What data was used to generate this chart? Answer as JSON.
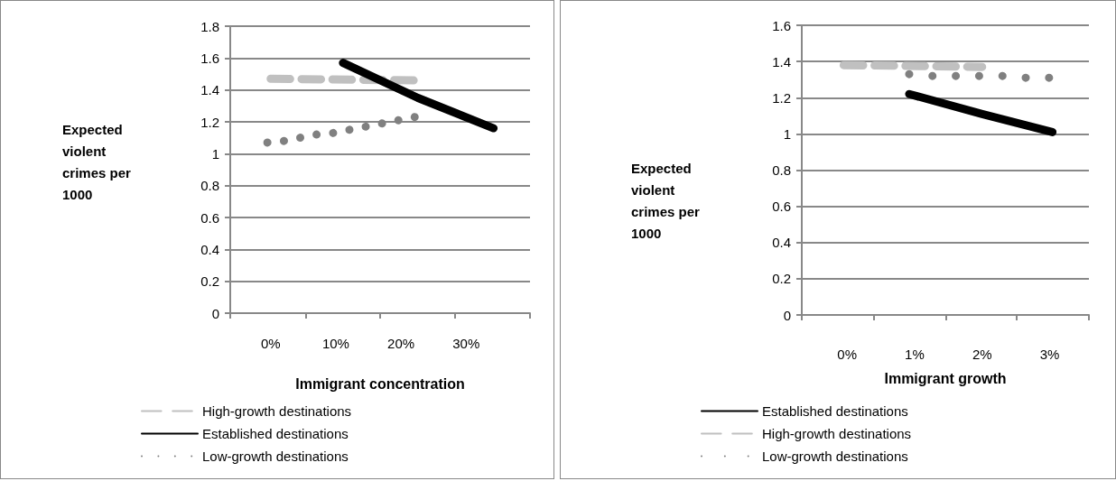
{
  "chart_data": [
    {
      "type": "line",
      "xlabel": "Immigrant concentration",
      "ylabel": "Expected violent crimes per 1000",
      "xlim": [
        -6.2,
        39.8
      ],
      "xticks": [
        {
          "value": -6.2,
          "label": null
        },
        {
          "value": 0,
          "label": "0%"
        },
        {
          "value": 5.4,
          "label": null
        },
        {
          "value": 10,
          "label": "10%"
        },
        {
          "value": 16.8,
          "label": null
        },
        {
          "value": 20,
          "label": "20%"
        },
        {
          "value": 28.3,
          "label": null
        },
        {
          "value": 30,
          "label": "30%"
        },
        {
          "value": 39.8,
          "label": null
        }
      ],
      "ylim": [
        0,
        1.8
      ],
      "yticks": [
        0,
        0.2,
        0.4,
        0.6,
        0.8,
        1,
        1.2,
        1.4,
        1.6,
        1.8
      ],
      "grid": "y",
      "legend": "bottom",
      "marker": "none",
      "series": [
        {
          "name": "High-growth destinations",
          "color": "#c0c0c0",
          "line_style": "dashed",
          "x": [
            0,
            22.5
          ],
          "values": [
            1.47,
            1.46
          ]
        },
        {
          "name": "Established destinations",
          "color": "#000000",
          "line_style": "solid",
          "x": [
            11.1,
            22.6,
            34.2
          ],
          "values": [
            1.57,
            1.35,
            1.16
          ]
        },
        {
          "name": "Low-growth destinations",
          "color": "#808080",
          "line_style": "dotted",
          "x": [
            -0.5,
            2.1,
            4.5,
            7.0,
            9.6,
            12.1,
            14.6,
            17.1,
            19.6,
            22.1
          ],
          "values": [
            1.07,
            1.08,
            1.1,
            1.12,
            1.13,
            1.15,
            1.17,
            1.19,
            1.21,
            1.23
          ]
        }
      ]
    },
    {
      "type": "line",
      "xlabel": "Immigrant growth",
      "ylabel": "Expected violent crimes per 1000",
      "xlim": [
        -0.67,
        3.58
      ],
      "xticks": [
        {
          "value": -0.67,
          "label": null
        },
        {
          "value": 0,
          "label": "0%"
        },
        {
          "value": 0.4,
          "label": null
        },
        {
          "value": 1,
          "label": "1%"
        },
        {
          "value": 1.46,
          "label": null
        },
        {
          "value": 2,
          "label": "2%"
        },
        {
          "value": 2.51,
          "label": null
        },
        {
          "value": 3,
          "label": "3%"
        },
        {
          "value": 3.58,
          "label": null
        }
      ],
      "ylim": [
        0,
        1.6
      ],
      "yticks": [
        0,
        0.2,
        0.4,
        0.6,
        0.8,
        1,
        1.2,
        1.4,
        1.6
      ],
      "grid": "y",
      "legend": "bottom",
      "marker": "none",
      "series": [
        {
          "name": "Established destinations",
          "color": "#000000",
          "line_style": "solid",
          "x": [
            0.92,
            2,
            3.04
          ],
          "values": [
            1.22,
            1.11,
            1.01
          ]
        },
        {
          "name": "High-growth destinations",
          "color": "#c0c0c0",
          "line_style": "dashed",
          "x": [
            -0.05,
            2
          ],
          "values": [
            1.38,
            1.37
          ]
        },
        {
          "name": "Low-growth destinations",
          "color": "#808080",
          "line_style": "dotted",
          "x": [
            0.92,
            1.26,
            1.61,
            1.95,
            2.3,
            2.65,
            2.99
          ],
          "values": [
            1.33,
            1.32,
            1.32,
            1.32,
            1.32,
            1.31,
            1.31
          ]
        }
      ]
    }
  ]
}
